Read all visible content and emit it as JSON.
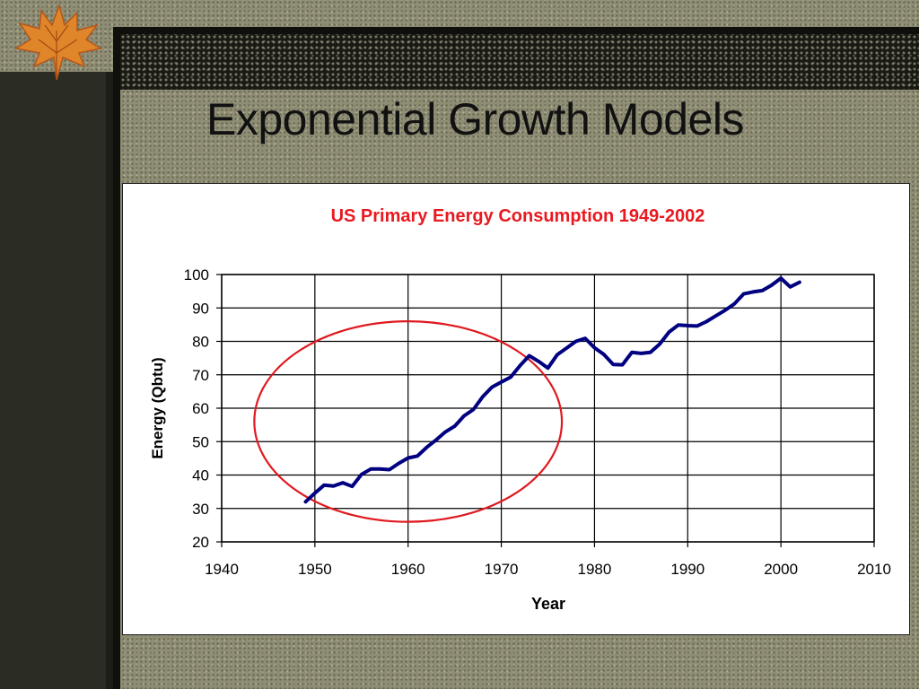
{
  "slide": {
    "title": "Exponential Growth Models"
  },
  "colors": {
    "series": "#000080",
    "title": "#e8191f",
    "ellipse": "#e0191f",
    "background": "#8f8d74"
  },
  "decoration": {
    "leaf_icon": "autumn-leaf-icon"
  },
  "chart_data": {
    "type": "line",
    "title": "US Primary Energy Consumption 1949-2002",
    "xlabel": "Year",
    "ylabel": "Energy (Qbtu)",
    "xlim": [
      1940,
      2010
    ],
    "ylim": [
      20,
      100
    ],
    "xticks": [
      1940,
      1950,
      1960,
      1970,
      1980,
      1990,
      2000,
      2010
    ],
    "yticks": [
      20,
      30,
      40,
      50,
      60,
      70,
      80,
      90,
      100
    ],
    "grid": true,
    "legend": "none",
    "series": [
      {
        "x": [
          1949,
          1950,
          1951,
          1952,
          1953,
          1954,
          1955,
          1956,
          1957,
          1958,
          1959,
          1960,
          1961,
          1962,
          1963,
          1964,
          1965,
          1966,
          1967,
          1968,
          1969,
          1970,
          1971,
          1972,
          1973,
          1974,
          1975,
          1976,
          1977,
          1978,
          1979,
          1980,
          1981,
          1982,
          1983,
          1984,
          1985,
          1986,
          1987,
          1988,
          1989,
          1990,
          1991,
          1992,
          1993,
          1994,
          1995,
          1996,
          1997,
          1998,
          1999,
          2000,
          2001,
          2002
        ],
        "y": [
          32,
          34.6,
          37,
          36.7,
          37.7,
          36.6,
          40.2,
          41.8,
          41.8,
          41.6,
          43.5,
          45.1,
          45.7,
          48.3,
          50.5,
          52.9,
          54.6,
          57.7,
          59.6,
          63.4,
          66.3,
          67.8,
          69.3,
          72.7,
          75.7,
          74,
          72,
          76,
          78,
          80,
          80.9,
          78.1,
          76.1,
          73.1,
          73,
          76.7,
          76.4,
          76.7,
          79.2,
          82.8,
          84.9,
          84.7,
          84.6,
          85.9,
          87.6,
          89.3,
          91.2,
          94.2,
          94.8,
          95.2,
          96.8,
          98.9,
          96.3,
          97.7
        ]
      }
    ],
    "annotations": [
      {
        "type": "ellipse",
        "center": [
          1960,
          56
        ],
        "rx_years": 16.5,
        "ry_units": 30
      }
    ]
  }
}
